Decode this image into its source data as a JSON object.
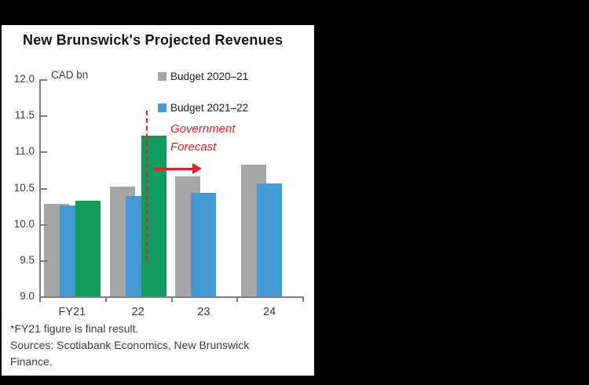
{
  "frame": {
    "background_color": "#000000",
    "panel_background": "#ffffff"
  },
  "chart_data": {
    "type": "bar",
    "title": "New Brunswick's Projected Revenues",
    "unit_label": "CAD bn",
    "categories": [
      "FY21",
      "22",
      "23",
      "24"
    ],
    "series": [
      {
        "name": "Budget 2020–21",
        "color": "#a6a6a6",
        "in_legend": true,
        "values": [
          10.28,
          10.52,
          10.66,
          10.82
        ]
      },
      {
        "name": "Budget 2021–22",
        "color": "#4599d3",
        "in_legend": true,
        "values": [
          10.26,
          10.39,
          10.43,
          10.56
        ]
      },
      {
        "name": "Government Forecast",
        "color": "#119a5e",
        "in_legend": false,
        "values": [
          10.32,
          11.22,
          null,
          null
        ]
      }
    ],
    "ylim": [
      9.0,
      12.0
    ],
    "ytick_step": 0.5,
    "ytick_labels": [
      "9.0",
      "9.5",
      "10.0",
      "10.5",
      "11.0",
      "11.5",
      "12.0"
    ],
    "xlabel": "",
    "ylabel": "CAD bn",
    "grid": false,
    "legend_position": "top-right-inside",
    "axis_color": "#7f7f7f",
    "annotations": {
      "text": {
        "lines": [
          "Government",
          "Forecast"
        ],
        "color": "#ee1c25",
        "style": "italic"
      },
      "dashed_vertical_line": {
        "at_category": "22",
        "color": "#ee1c25",
        "from_value": 9.5,
        "to_value": 11.55
      },
      "arrow_right": {
        "color": "#ee1c25",
        "at_value": 10.76,
        "from_category": "22",
        "to_category": "23"
      }
    }
  },
  "footer": {
    "note": "*FY21 figure is final result.",
    "sources_lines": [
      "Sources: Scotiabank Economics, New Brunswick",
      "Finance."
    ]
  }
}
